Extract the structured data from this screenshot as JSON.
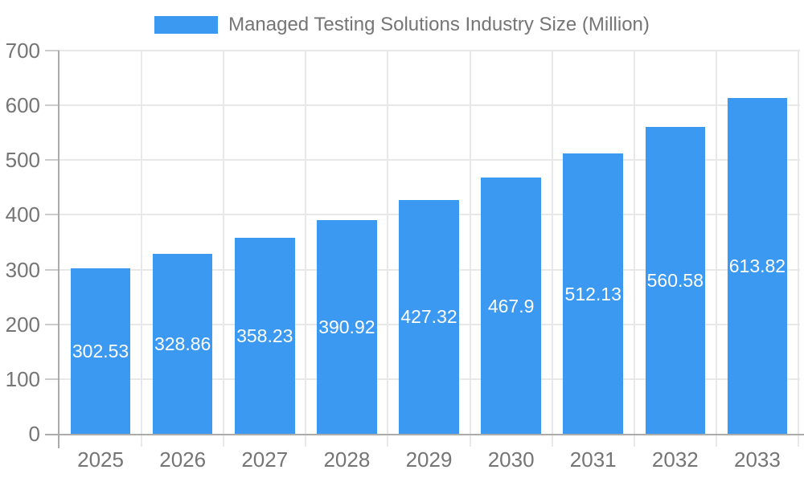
{
  "chart_data": {
    "type": "bar",
    "title": "Managed Testing Solutions Industry Size (Million)",
    "categories": [
      "2025",
      "2026",
      "2027",
      "2028",
      "2029",
      "2030",
      "2031",
      "2032",
      "2033"
    ],
    "values": [
      302.53,
      328.86,
      358.23,
      390.92,
      427.32,
      467.9,
      512.13,
      560.58,
      613.82
    ],
    "value_labels": [
      "302.53",
      "328.86",
      "358.23",
      "390.92",
      "427.32",
      "467.9",
      "512.13",
      "560.58",
      "613.82"
    ],
    "xlabel": "",
    "ylabel": "",
    "ylim": [
      0,
      700
    ],
    "yticks": [
      0,
      100,
      200,
      300,
      400,
      500,
      600,
      700
    ],
    "grid": true,
    "legend_position": "top",
    "value_label_position": "center-of-bar",
    "colors": {
      "bar": "#3B99F2",
      "text": "#757575",
      "value_text": "#FFFFFF",
      "gridline": "#E8E8E8",
      "tick": "#CCCCCC",
      "axis": "#ABABAB",
      "background": "#FFFFFF"
    }
  }
}
